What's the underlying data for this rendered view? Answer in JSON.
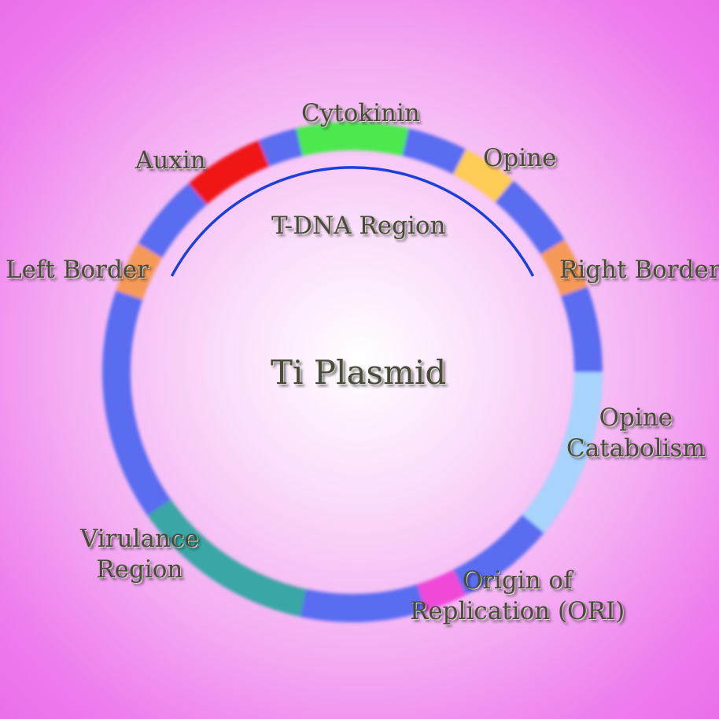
{
  "title": "Ti Plasmid",
  "region_label": "T-DNA Region",
  "labels": {
    "cytokinin": "Cytokinin",
    "auxin": "Auxin",
    "opine": "Opine",
    "left_border": "Left Border",
    "right_border": "Right Border",
    "opine_catabolism_1": "Opine",
    "opine_catabolism_2": "Catabolism",
    "virulance_1": "Virulance",
    "virulance_2": "Region",
    "ori_1": "Origin of",
    "ori_2": "Replication (ORI)"
  },
  "colors": {
    "backbone": "#5a6cf0",
    "cytokinin": "#4ee84e",
    "auxin": "#f01818",
    "opine": "#ffcc55",
    "right_border": "#f59a58",
    "left_border": "#f59a58",
    "opine_catabolism": "#a8d4fb",
    "ori": "#f04ad8",
    "virulance": "#3aa6a6",
    "tdna_arc": "#1b3fd8"
  }
}
